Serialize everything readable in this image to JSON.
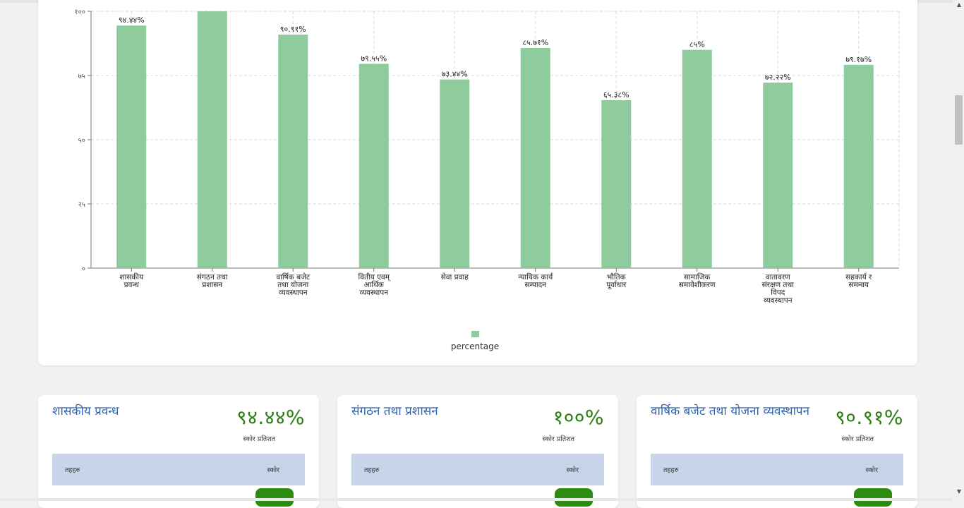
{
  "chart_data": {
    "type": "bar",
    "categories": [
      [
        "शासकीय",
        "प्रवन्ध"
      ],
      [
        "संगठन तथा",
        "प्रशासन"
      ],
      [
        "वार्षिक बजेट",
        "तथा योजना",
        "व्यवस्थापन"
      ],
      [
        "वितीय एवम्",
        "आर्थिक",
        "व्यवस्थापन"
      ],
      [
        "सेवा प्रवाह"
      ],
      [
        "न्यायिक कार्य",
        "सम्पादन"
      ],
      [
        "भौतिक",
        "पूर्वाधार"
      ],
      [
        "सामाजिक",
        "समावेशीकरण"
      ],
      [
        "वातावरण",
        "संरक्षण तथा",
        "विपद",
        "व्यवस्थापन"
      ],
      [
        "सहकार्य र",
        "समन्वय"
      ]
    ],
    "values": [
      94.44,
      100,
      90.91,
      79.55,
      73.44,
      85.71,
      65.38,
      85,
      72.22,
      79.17
    ],
    "value_labels": [
      "९४.४४%",
      "",
      "९०.९१%",
      "७९.५५%",
      "७३.४४%",
      "८५.७१%",
      "६५.३८%",
      "८५%",
      "७२.२२%",
      "७९.१७%"
    ],
    "y_ticks": [
      0,
      25,
      50,
      75,
      100
    ],
    "y_tick_labels": [
      "०",
      "२५",
      "५०",
      "७५",
      "१००"
    ],
    "ylim": [
      0,
      100
    ],
    "series": [
      {
        "name": "percentage"
      }
    ],
    "legend": "bottom-center",
    "grid": true,
    "bar_color": "#8ecc9d"
  },
  "legend": {
    "label": "percentage"
  },
  "cards": [
    {
      "title": "शासकीय प्रवन्ध",
      "score": "९४.४४%",
      "score_label": "स्कोर प्रतिशत",
      "col_left": "तहहरु",
      "col_right": "स्कोर"
    },
    {
      "title": "संगठन तथा प्रशासन",
      "score": "१००%",
      "score_label": "स्कोर प्रतिशत",
      "col_left": "तहहरु",
      "col_right": "स्कोर"
    },
    {
      "title": "वार्षिक बजेट तथा योजना व्यवस्थापन",
      "score": "९०.९१%",
      "score_label": "स्कोर प्रतिशत",
      "col_left": "तहहरु",
      "col_right": "स्कोर"
    }
  ],
  "colors": {
    "accent_title": "#2f63b3",
    "score": "#2e7d14",
    "table_head": "#c7d4ea",
    "badge": "#2e8b12"
  }
}
